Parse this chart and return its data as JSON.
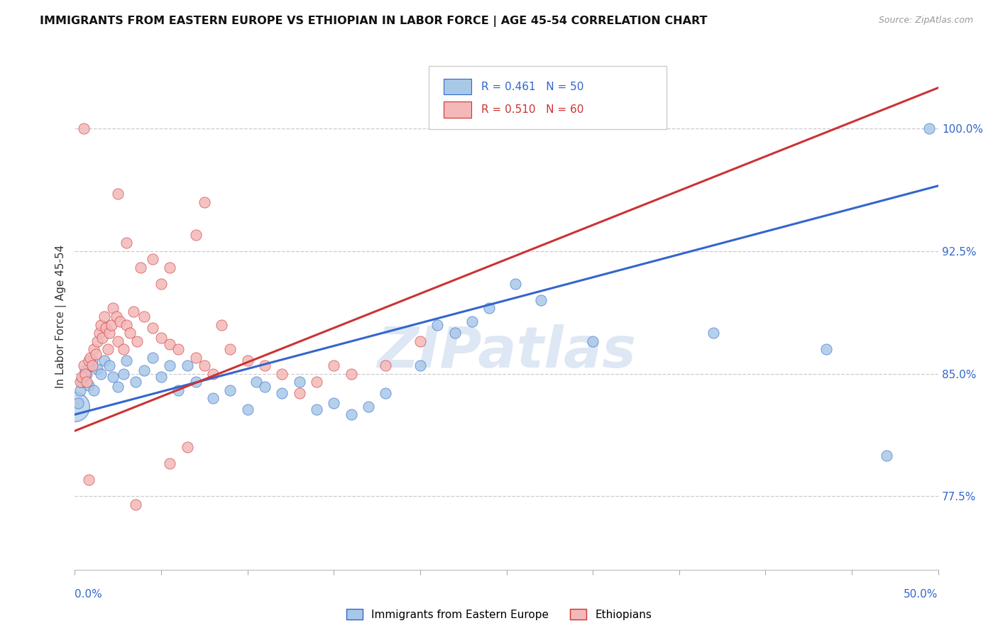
{
  "title": "IMMIGRANTS FROM EASTERN EUROPE VS ETHIOPIAN IN LABOR FORCE | AGE 45-54 CORRELATION CHART",
  "source": "Source: ZipAtlas.com",
  "ylabel": "In Labor Force | Age 45-54",
  "xmin": 0.0,
  "xmax": 50.0,
  "ymin": 73.0,
  "ymax": 104.0,
  "R_blue": 0.461,
  "N_blue": 50,
  "R_pink": 0.51,
  "N_pink": 60,
  "blue_color": "#a8c8e8",
  "pink_color": "#f4b8b8",
  "blue_line_color": "#3366cc",
  "pink_line_color": "#cc3333",
  "blue_edge_color": "#3366cc",
  "pink_edge_color": "#cc3333",
  "watermark": "ZIPatlas",
  "watermark_color": "#c8d8ee",
  "legend_label_blue": "Immigrants from Eastern Europe",
  "legend_label_pink": "Ethiopians",
  "blue_line_x0": 0.0,
  "blue_line_y0": 82.5,
  "blue_line_x1": 50.0,
  "blue_line_y1": 96.5,
  "pink_line_x0": 0.0,
  "pink_line_y0": 81.5,
  "pink_line_x1": 50.0,
  "pink_line_y1": 102.5,
  "ytick_positions": [
    77.5,
    85.0,
    92.5,
    100.0
  ],
  "ytick_labels": [
    "77.5%",
    "85.0%",
    "92.5%",
    "100.0%"
  ],
  "blue_scatter": [
    [
      0.2,
      83.2
    ],
    [
      0.3,
      84.0
    ],
    [
      0.4,
      84.5
    ],
    [
      0.5,
      84.8
    ],
    [
      0.6,
      85.2
    ],
    [
      0.7,
      85.0
    ],
    [
      0.8,
      84.3
    ],
    [
      0.9,
      85.5
    ],
    [
      1.0,
      85.8
    ],
    [
      1.1,
      84.0
    ],
    [
      1.3,
      85.3
    ],
    [
      1.5,
      85.0
    ],
    [
      1.7,
      85.8
    ],
    [
      2.0,
      85.5
    ],
    [
      2.2,
      84.8
    ],
    [
      2.5,
      84.2
    ],
    [
      2.8,
      85.0
    ],
    [
      3.0,
      85.8
    ],
    [
      3.5,
      84.5
    ],
    [
      4.0,
      85.2
    ],
    [
      4.5,
      86.0
    ],
    [
      5.0,
      84.8
    ],
    [
      5.5,
      85.5
    ],
    [
      6.0,
      84.0
    ],
    [
      6.5,
      85.5
    ],
    [
      7.0,
      84.5
    ],
    [
      8.0,
      83.5
    ],
    [
      9.0,
      84.0
    ],
    [
      10.0,
      82.8
    ],
    [
      10.5,
      84.5
    ],
    [
      11.0,
      84.2
    ],
    [
      12.0,
      83.8
    ],
    [
      13.0,
      84.5
    ],
    [
      14.0,
      82.8
    ],
    [
      15.0,
      83.2
    ],
    [
      16.0,
      82.5
    ],
    [
      17.0,
      83.0
    ],
    [
      18.0,
      83.8
    ],
    [
      20.0,
      85.5
    ],
    [
      21.0,
      88.0
    ],
    [
      22.0,
      87.5
    ],
    [
      23.0,
      88.2
    ],
    [
      24.0,
      89.0
    ],
    [
      25.5,
      90.5
    ],
    [
      27.0,
      89.5
    ],
    [
      30.0,
      87.0
    ],
    [
      37.0,
      87.5
    ],
    [
      43.5,
      86.5
    ],
    [
      47.0,
      80.0
    ],
    [
      49.5,
      100.0
    ]
  ],
  "blue_scatter_large": [
    [
      0.0,
      83.0
    ]
  ],
  "pink_scatter": [
    [
      0.3,
      84.5
    ],
    [
      0.4,
      84.8
    ],
    [
      0.5,
      85.5
    ],
    [
      0.6,
      85.0
    ],
    [
      0.7,
      84.5
    ],
    [
      0.8,
      85.8
    ],
    [
      0.9,
      86.0
    ],
    [
      1.0,
      85.5
    ],
    [
      1.1,
      86.5
    ],
    [
      1.2,
      86.2
    ],
    [
      1.3,
      87.0
    ],
    [
      1.4,
      87.5
    ],
    [
      1.5,
      88.0
    ],
    [
      1.6,
      87.2
    ],
    [
      1.7,
      88.5
    ],
    [
      1.8,
      87.8
    ],
    [
      1.9,
      86.5
    ],
    [
      2.0,
      87.5
    ],
    [
      2.1,
      88.0
    ],
    [
      2.2,
      89.0
    ],
    [
      2.4,
      88.5
    ],
    [
      2.5,
      87.0
    ],
    [
      2.6,
      88.2
    ],
    [
      2.8,
      86.5
    ],
    [
      3.0,
      88.0
    ],
    [
      3.2,
      87.5
    ],
    [
      3.4,
      88.8
    ],
    [
      3.6,
      87.0
    ],
    [
      4.0,
      88.5
    ],
    [
      4.5,
      87.8
    ],
    [
      5.0,
      87.2
    ],
    [
      5.5,
      86.8
    ],
    [
      6.0,
      86.5
    ],
    [
      7.0,
      86.0
    ],
    [
      7.5,
      85.5
    ],
    [
      8.0,
      85.0
    ],
    [
      9.0,
      86.5
    ],
    [
      10.0,
      85.8
    ],
    [
      11.0,
      85.5
    ],
    [
      12.0,
      85.0
    ],
    [
      13.0,
      83.8
    ],
    [
      14.0,
      84.5
    ],
    [
      15.0,
      85.5
    ],
    [
      16.0,
      85.0
    ],
    [
      18.0,
      85.5
    ],
    [
      20.0,
      87.0
    ],
    [
      0.8,
      78.5
    ],
    [
      3.5,
      77.0
    ],
    [
      5.5,
      79.5
    ],
    [
      6.5,
      80.5
    ],
    [
      3.0,
      93.0
    ],
    [
      4.5,
      92.0
    ],
    [
      5.5,
      91.5
    ],
    [
      7.5,
      95.5
    ],
    [
      7.0,
      93.5
    ],
    [
      8.5,
      88.0
    ],
    [
      2.5,
      96.0
    ],
    [
      0.5,
      100.0
    ],
    [
      3.8,
      91.5
    ],
    [
      5.0,
      90.5
    ]
  ]
}
